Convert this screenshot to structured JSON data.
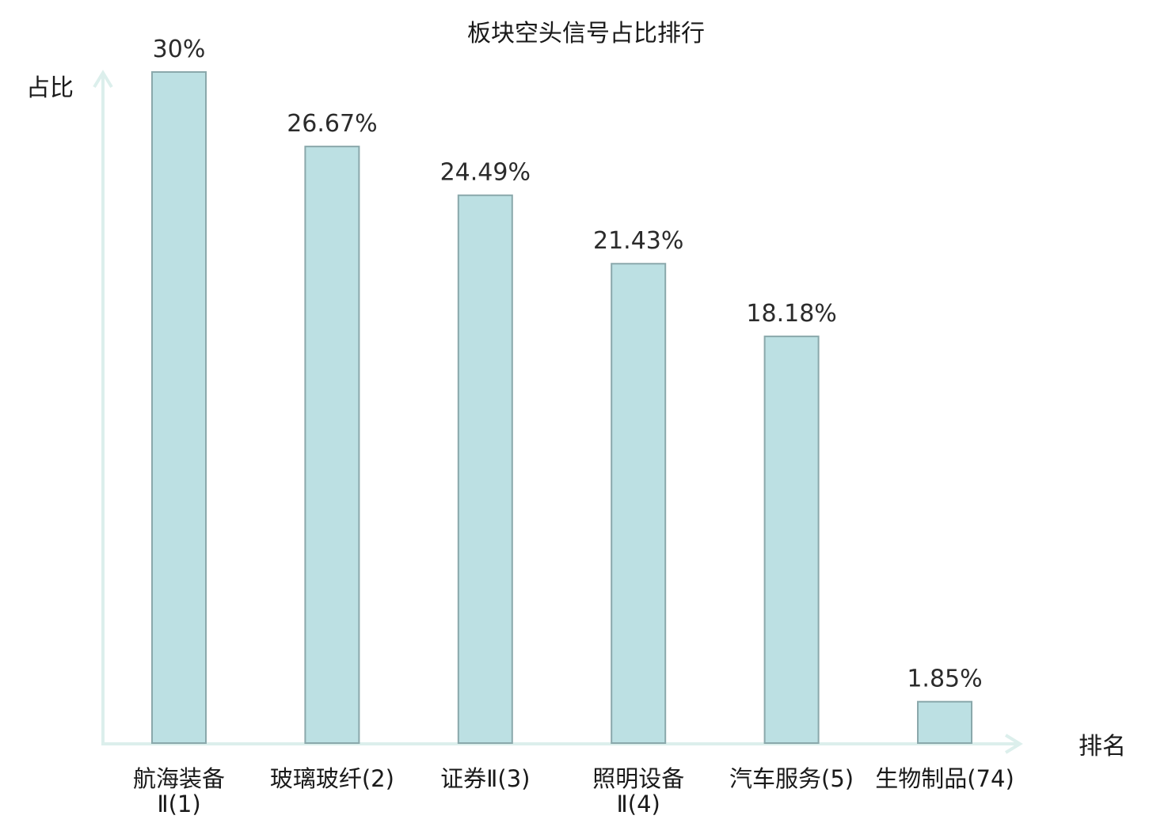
{
  "chart_data": {
    "type": "bar",
    "title": "板块空头信号占比排行",
    "xlabel": "排名",
    "ylabel": "占比",
    "ylim": [
      0,
      30
    ],
    "grid": false,
    "value_suffix": "%",
    "categories": [
      {
        "name": "航海装备Ⅱ",
        "rank": "1",
        "lines": [
          "航海装备",
          "Ⅱ(1)"
        ],
        "highlight": false
      },
      {
        "name": "玻璃玻纤",
        "rank": "2",
        "lines": [
          "玻璃玻纤(2)"
        ],
        "highlight": false
      },
      {
        "name": "证券Ⅱ",
        "rank": "3",
        "lines": [
          "证券Ⅱ(3)"
        ],
        "highlight": false
      },
      {
        "name": "照明设备Ⅱ",
        "rank": "4",
        "lines": [
          "照明设备",
          "Ⅱ(4)"
        ],
        "highlight": false
      },
      {
        "name": "汽车服务",
        "rank": "5",
        "lines": [
          "汽车服务(5)"
        ],
        "highlight": false
      },
      {
        "name": "生物制品",
        "rank": "74",
        "lines": [
          "生物制品(74)"
        ],
        "highlight": true
      }
    ],
    "values": [
      30,
      26.67,
      24.49,
      21.43,
      18.18,
      1.85
    ],
    "value_labels": [
      "30%",
      "26.67%",
      "24.49%",
      "21.43%",
      "18.18%",
      "1.85%"
    ]
  },
  "colors": {
    "bar_fill": "#bce0e3",
    "bar_stroke": "#8aa8ab",
    "axis": "#dcefec",
    "highlight_text": "#e0141e",
    "text": "#1a1a1a"
  }
}
